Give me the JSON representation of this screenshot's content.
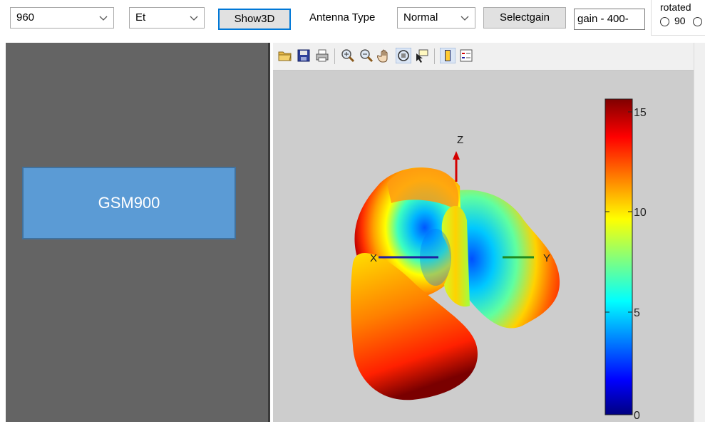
{
  "toolbar": {
    "frequency_value": "960",
    "field_value": "Et",
    "show3d_label": "Show3D",
    "antenna_type_label": "Antenna Type",
    "antenna_type_value": "Normal",
    "selectgain_label": "Selectgain",
    "gain_value": "gain - 400-",
    "rotated_label": "rotated",
    "rotated_option_90": "90"
  },
  "left_panel": {
    "antenna_name": "GSM900"
  },
  "figure": {
    "toolbar_icons": [
      "open-icon",
      "save-icon",
      "print-icon",
      "zoom-in-icon",
      "zoom-out-icon",
      "pan-icon",
      "rotate3d-icon",
      "data-cursor-icon",
      "colorbar-icon",
      "legend-icon"
    ],
    "axis_labels": {
      "x": "X",
      "y": "Y",
      "z": "Z"
    },
    "colorbar_ticks": [
      "15",
      "10",
      "5",
      "0"
    ],
    "colors": {
      "x_axis": "#1f1fa0",
      "y_axis": "#1f8a1f",
      "z_axis": "#d40000",
      "name_box": "#5b9bd5"
    }
  }
}
